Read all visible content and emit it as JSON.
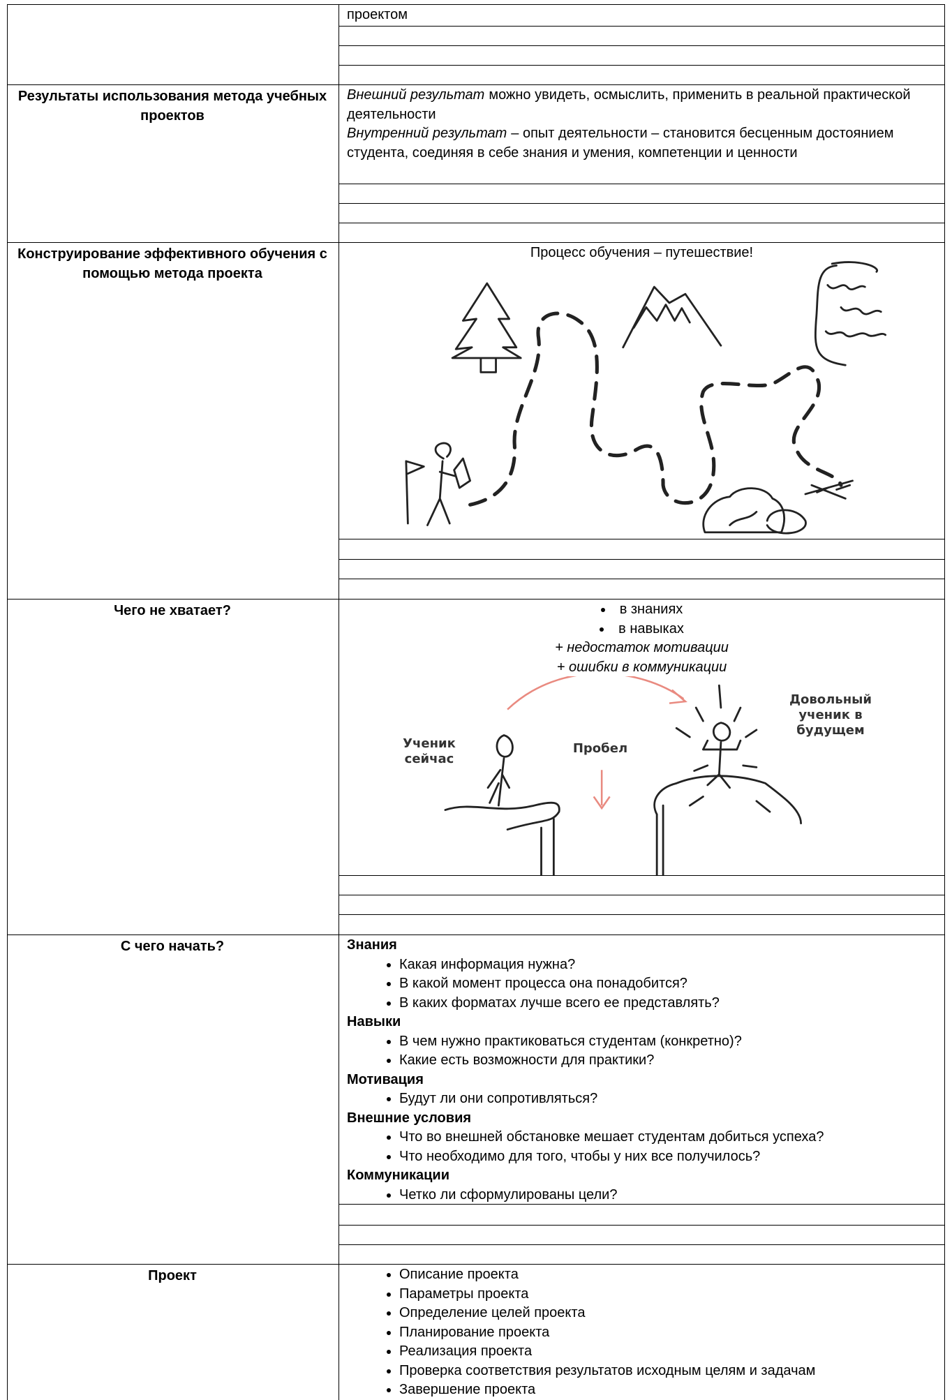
{
  "table": {
    "rows": [
      {
        "content": {
          "text": "проектом"
        }
      },
      {
        "label": "Результаты использования метода учебных проектов",
        "content": {
          "paragraphs": [
            {
              "italic": "Внешний результат",
              "text": "можно увидеть, осмыслить, применить в реальной практической деятельности"
            },
            {
              "italic": "Внутренний результат",
              "text": "– опыт деятельности – становится бесценным достоянием студента, соединяя в себе знания и умения, компетенции и ценности"
            }
          ]
        }
      },
      {
        "label": "Конструирование эффективного обучения с помощью метода проекта",
        "content": {
          "caption": "Процесс обучения – путешествие!"
        }
      },
      {
        "label": "Чего не хватает?",
        "content": {
          "bullets": [
            "в знаниях",
            "в навыках"
          ],
          "italic_lines": [
            "+ недостаток мотивации",
            "+ ошибки в коммуникации"
          ],
          "drawing_labels": {
            "now": "Ученик сейчас",
            "gap": "Пробел",
            "future": "Довольный ученик в будущем"
          }
        }
      },
      {
        "label": "С чего начать?",
        "content": {
          "sections": [
            {
              "heading": "Знания",
              "items": [
                "Какая информация нужна?",
                "В какой момент процесса она понадобится?",
                "В каких форматах лучше всего ее представлять?"
              ]
            },
            {
              "heading": "Навыки",
              "items": [
                "В чем нужно практиковаться студентам (конкретно)?",
                "Какие есть возможности для практики?"
              ]
            },
            {
              "heading": "Мотивация",
              "items": [
                "Будут ли они сопротивляться?"
              ]
            },
            {
              "heading": "Внешние условия",
              "items": [
                "Что во внешней обстановке мешает студентам добиться успеха?",
                "Что необходимо для того, чтобы у них все получилось?"
              ]
            },
            {
              "heading": "Коммуникации",
              "items": [
                "Четко ли сформулированы цели?"
              ]
            }
          ]
        }
      },
      {
        "label": "Проект",
        "content": {
          "items": [
            "Описание проекта",
            "Параметры проекта",
            "Определение целей проекта",
            "Планирование проекта",
            "Реализация проекта",
            "Проверка соответствия результатов исходным целям и задачам",
            "Завершение проекта"
          ]
        }
      }
    ]
  }
}
